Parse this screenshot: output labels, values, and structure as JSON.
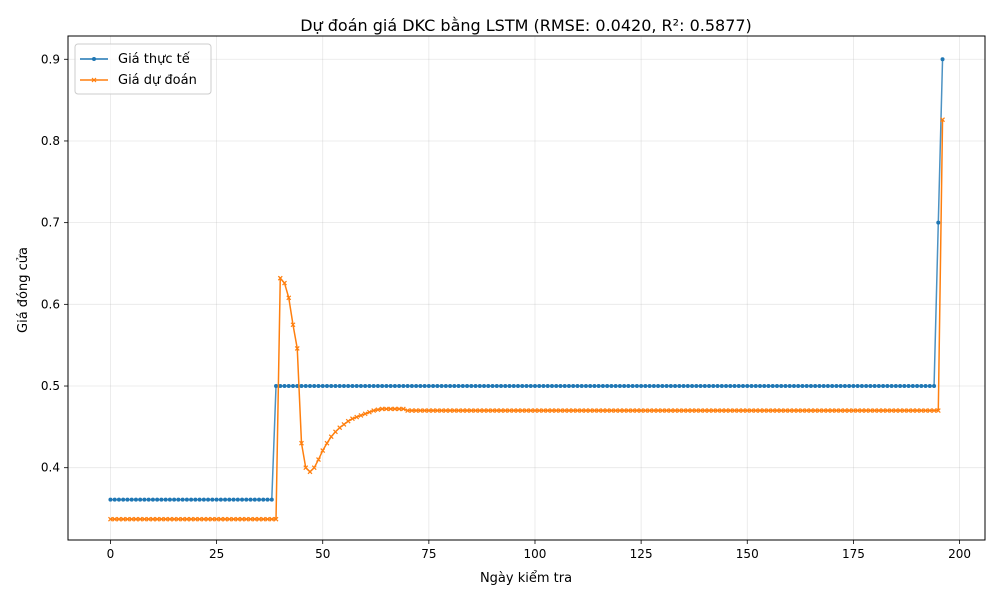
{
  "chart_data": {
    "type": "line",
    "title": "Dự đoán giá DKC bằng LSTM (RMSE: 0.0420, R²: 0.5877)",
    "xlabel": "Ngày kiểm tra",
    "ylabel": "Giá đóng cửa",
    "xlim": [
      -10,
      206
    ],
    "ylim": [
      0.3115,
      0.9285
    ],
    "xticks": [
      0,
      25,
      50,
      75,
      100,
      125,
      150,
      175,
      200
    ],
    "yticks": [
      0.4,
      0.5,
      0.6,
      0.7,
      0.8,
      0.9
    ],
    "grid": true,
    "legend_position": "top-left",
    "series": [
      {
        "name": "Giá thực tế",
        "color": "#1f77b4",
        "marker": "circle",
        "segments": [
          {
            "from": 0,
            "to": 38,
            "value": 0.361
          },
          {
            "from": 39,
            "to": 194,
            "value": 0.5
          },
          {
            "from": 195,
            "to": 195,
            "value": 0.7
          },
          {
            "from": 196,
            "to": 196,
            "value": 0.9
          }
        ]
      },
      {
        "name": "Giá dự đoán",
        "color": "#ff7f0e",
        "marker": "x",
        "segments": [
          {
            "from": 0,
            "to": 39,
            "value": 0.337
          },
          {
            "from": 40,
            "to": 69,
            "values": [
              0.632,
              0.626,
              0.608,
              0.575,
              0.546,
              0.43,
              0.4,
              0.395,
              0.4,
              0.41,
              0.421,
              0.43,
              0.438,
              0.444,
              0.449,
              0.453,
              0.457,
              0.46,
              0.462,
              0.464,
              0.466,
              0.468,
              0.47,
              0.471,
              0.472,
              0.472,
              0.472,
              0.472,
              0.472,
              0.472
            ]
          },
          {
            "from": 70,
            "to": 195,
            "value": 0.47
          },
          {
            "from": 196,
            "to": 196,
            "value": 0.826
          }
        ]
      }
    ]
  }
}
